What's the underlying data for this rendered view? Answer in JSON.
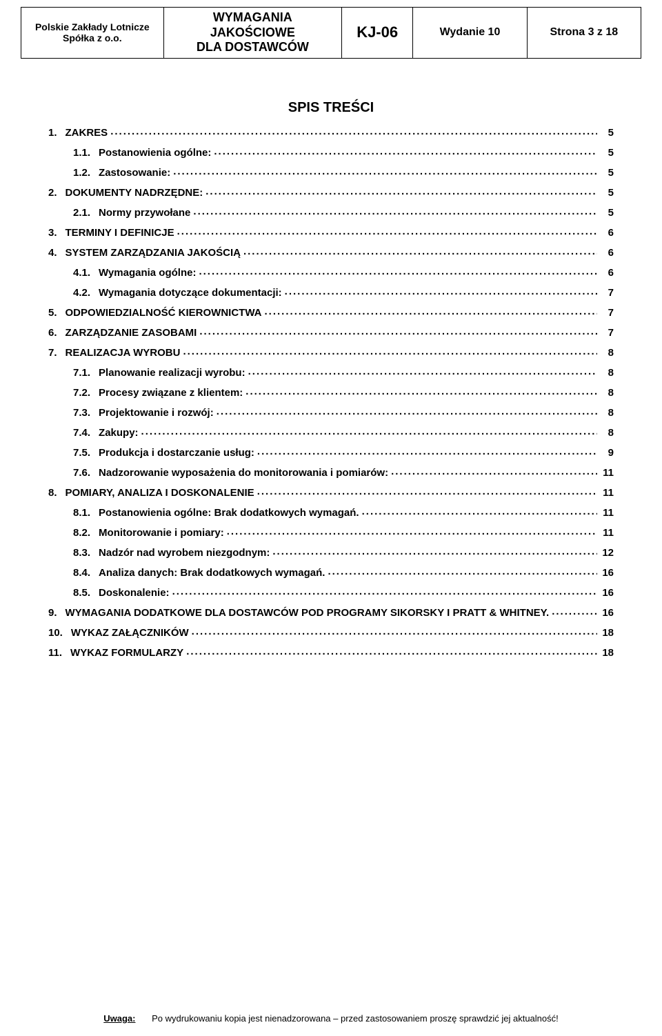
{
  "header": {
    "org_line1": "Polskie Zakłady Lotnicze",
    "org_line2": "Spółka z o.o.",
    "title_line1": "WYMAGANIA JAKOŚCIOWE",
    "title_line2": "DLA DOSTAWCÓW",
    "code": "KJ-06",
    "issue": "Wydanie 10",
    "page": "Strona 3 z 18"
  },
  "toc_title": "SPIS TREŚCI",
  "toc": [
    {
      "level": 1,
      "num": "1.",
      "label": "ZAKRES",
      "page": "5"
    },
    {
      "level": 2,
      "num": "1.1.",
      "label": "Postanowienia ogólne:",
      "page": "5"
    },
    {
      "level": 2,
      "num": "1.2.",
      "label": "Zastosowanie:",
      "page": "5"
    },
    {
      "level": 1,
      "num": "2.",
      "label": "DOKUMENTY NADRZĘDNE:",
      "page": "5"
    },
    {
      "level": 2,
      "num": "2.1.",
      "label": "Normy przywołane",
      "page": "5"
    },
    {
      "level": 1,
      "num": "3.",
      "label": "TERMINY I DEFINICJE",
      "page": "6"
    },
    {
      "level": 1,
      "num": "4.",
      "label": "SYSTEM ZARZĄDZANIA JAKOŚCIĄ",
      "page": "6"
    },
    {
      "level": 2,
      "num": "4.1.",
      "label": "Wymagania ogólne:",
      "page": "6"
    },
    {
      "level": 2,
      "num": "4.2.",
      "label": "Wymagania dotyczące dokumentacji:",
      "page": "7"
    },
    {
      "level": 1,
      "num": "5.",
      "label": "ODPOWIEDZIALNOŚĆ KIEROWNICTWA",
      "page": "7"
    },
    {
      "level": 1,
      "num": "6.",
      "label": "ZARZĄDZANIE ZASOBAMI",
      "page": "7"
    },
    {
      "level": 1,
      "num": "7.",
      "label": "REALIZACJA WYROBU",
      "page": "8"
    },
    {
      "level": 2,
      "num": "7.1.",
      "label": "Planowanie realizacji wyrobu:",
      "page": "8"
    },
    {
      "level": 2,
      "num": "7.2.",
      "label": "Procesy związane z klientem:",
      "page": "8"
    },
    {
      "level": 2,
      "num": "7.3.",
      "label": "Projektowanie i rozwój:",
      "page": "8"
    },
    {
      "level": 2,
      "num": "7.4.",
      "label": "Zakupy:",
      "page": "8"
    },
    {
      "level": 2,
      "num": "7.5.",
      "label": "Produkcja i dostarczanie usług:",
      "page": "9"
    },
    {
      "level": 2,
      "num": "7.6.",
      "label": "Nadzorowanie wyposażenia do monitorowania i pomiarów:",
      "page": "11"
    },
    {
      "level": 1,
      "num": "8.",
      "label": "POMIARY, ANALIZA I DOSKONALENIE",
      "page": "11"
    },
    {
      "level": 2,
      "num": "8.1.",
      "label": "Postanowienia ogólne: Brak dodatkowych wymagań.",
      "page": "11"
    },
    {
      "level": 2,
      "num": "8.2.",
      "label": "Monitorowanie i pomiary:",
      "page": "11"
    },
    {
      "level": 2,
      "num": "8.3.",
      "label": "Nadzór nad wyrobem niezgodnym:",
      "page": "12"
    },
    {
      "level": 2,
      "num": "8.4.",
      "label": "Analiza danych: Brak dodatkowych wymagań.",
      "page": "16"
    },
    {
      "level": 2,
      "num": "8.5.",
      "label": "Doskonalenie:",
      "page": "16"
    },
    {
      "level": 1,
      "num": "9.",
      "label": "WYMAGANIA DODATKOWE DLA DOSTAWCÓW POD PROGRAMY SIKORSKY  I PRATT & WHITNEY.",
      "page": "16",
      "wrap": true
    },
    {
      "level": 1,
      "num": "10.",
      "label": "WYKAZ ZAŁĄCZNIKÓW",
      "page": "18"
    },
    {
      "level": 1,
      "num": "11.",
      "label": "WYKAZ FORMULARZY",
      "page": "18"
    }
  ],
  "footer": {
    "label": "Uwaga:",
    "text": "Po wydrukowaniu kopia jest nienadzorowana – przed zastosowaniem proszę sprawdzić jej aktualność!"
  },
  "colors": {
    "text": "#000000",
    "background": "#ffffff",
    "border": "#000000"
  },
  "typography": {
    "body_font": "Arial",
    "header_code_size_pt": 22,
    "header_title_size_pt": 18,
    "toc_size_pt": 15,
    "toc_title_size_pt": 20
  }
}
